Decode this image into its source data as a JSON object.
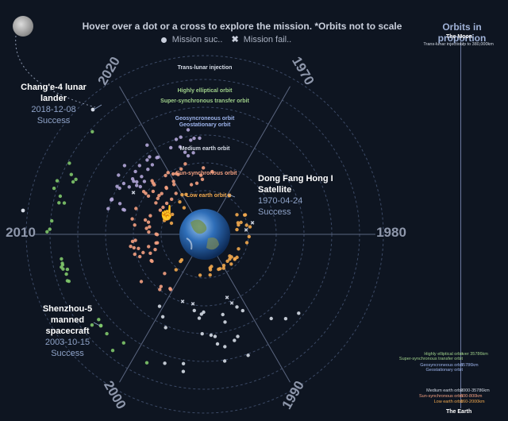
{
  "header": {
    "instruction": "Hover over a dot or a cross to explore the mission. *Orbits not to scale",
    "legend_success": "Mission suc..",
    "legend_failure": "Mission fail.."
  },
  "decades": [
    "2020",
    "1970",
    "1980",
    "1990",
    "2000",
    "2010"
  ],
  "orbit_labels": [
    {
      "text": "Trans-lunar injection",
      "color": "#d5dbe6"
    },
    {
      "text": "Highly elliptical orbit",
      "color": "#9fd08a"
    },
    {
      "text": "Super-synchronous transfer orbit",
      "color": "#9fd08a"
    },
    {
      "text": "Geosyncroneous orbit",
      "color": "#9db4ec"
    },
    {
      "text": "Geostationary orbit",
      "color": "#9db4ec"
    },
    {
      "text": "Medium earth orbit",
      "color": "#d5dbe6"
    },
    {
      "text": "Sun-synchronous orbit",
      "color": "#f4a081"
    },
    {
      "text": "Low earth orbit",
      "color": "#f2a94e"
    }
  ],
  "highlights": [
    {
      "name": "Chang'e-4 lunar lander",
      "date": "2018-12-08",
      "status": "Success"
    },
    {
      "name": "Dong Fang Hong I Satellite",
      "date": "1970-04-24",
      "status": "Success"
    },
    {
      "name": "Shenzhou-5 manned spacecraft",
      "date": "2003-10-15",
      "status": "Success"
    }
  ],
  "side_panel": {
    "title": "Orbits in proportion",
    "top_label": "The Moon",
    "bottom_label": "The Earth",
    "rows": [
      {
        "left": "Trans-lunar injection",
        "right": "Up to 380,000km",
        "color": "#d5dbe6"
      },
      {
        "left": "Highly elliptical orbit",
        "right": "over 35786km",
        "color": "#9fd08a"
      },
      {
        "left": "Super-synchronous transfer orbit",
        "right": "",
        "color": "#9fd08a"
      },
      {
        "left": "Geosyncroneous orbit",
        "right": "35786km",
        "color": "#9db4ec"
      },
      {
        "left": "Geostationary orbit",
        "right": "",
        "color": "#9db4ec"
      },
      {
        "left": "Medium earth orbit",
        "right": "2000-35786km",
        "color": "#d5dbe6"
      },
      {
        "left": "Sun-synchronous orbit",
        "right": "600-800km",
        "color": "#f4a081"
      },
      {
        "left": "Low earth orbit",
        "right": "160-2000km",
        "color": "#f2a94e"
      }
    ]
  },
  "colors": {
    "background": "#0e1521",
    "low_earth": "#f2a94e",
    "sun_sync": "#f4a081",
    "medium": "#d5dbe6",
    "geo": "#b2a6d8",
    "high_elliptical": "#7fc66a",
    "trans_lunar": "#d5dbe6"
  },
  "icons": {
    "moon": "moon-icon",
    "earth": "earth-icon",
    "cursor": "pointer-hand-icon",
    "success": "dot-icon",
    "failure": "cross-icon"
  }
}
